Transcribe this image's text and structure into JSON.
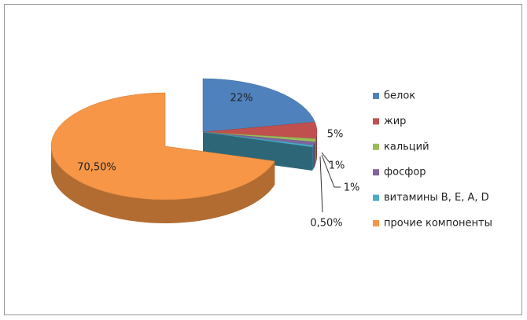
{
  "chart_data": {
    "type": "pie",
    "categories": [
      "белок",
      "жир",
      "кальций",
      "фосфор",
      "витамины B, E, A, D",
      "прочие компоненты"
    ],
    "values": [
      22,
      5,
      1,
      1,
      0.5,
      70.5
    ],
    "value_labels": [
      "22%",
      "5%",
      "1%",
      "1%",
      "0,50%",
      "70,50%"
    ],
    "colors": [
      "#4f81bd",
      "#c0504d",
      "#9bbb59",
      "#8064a2",
      "#4bacc6",
      "#f79646"
    ],
    "legend": "right"
  }
}
